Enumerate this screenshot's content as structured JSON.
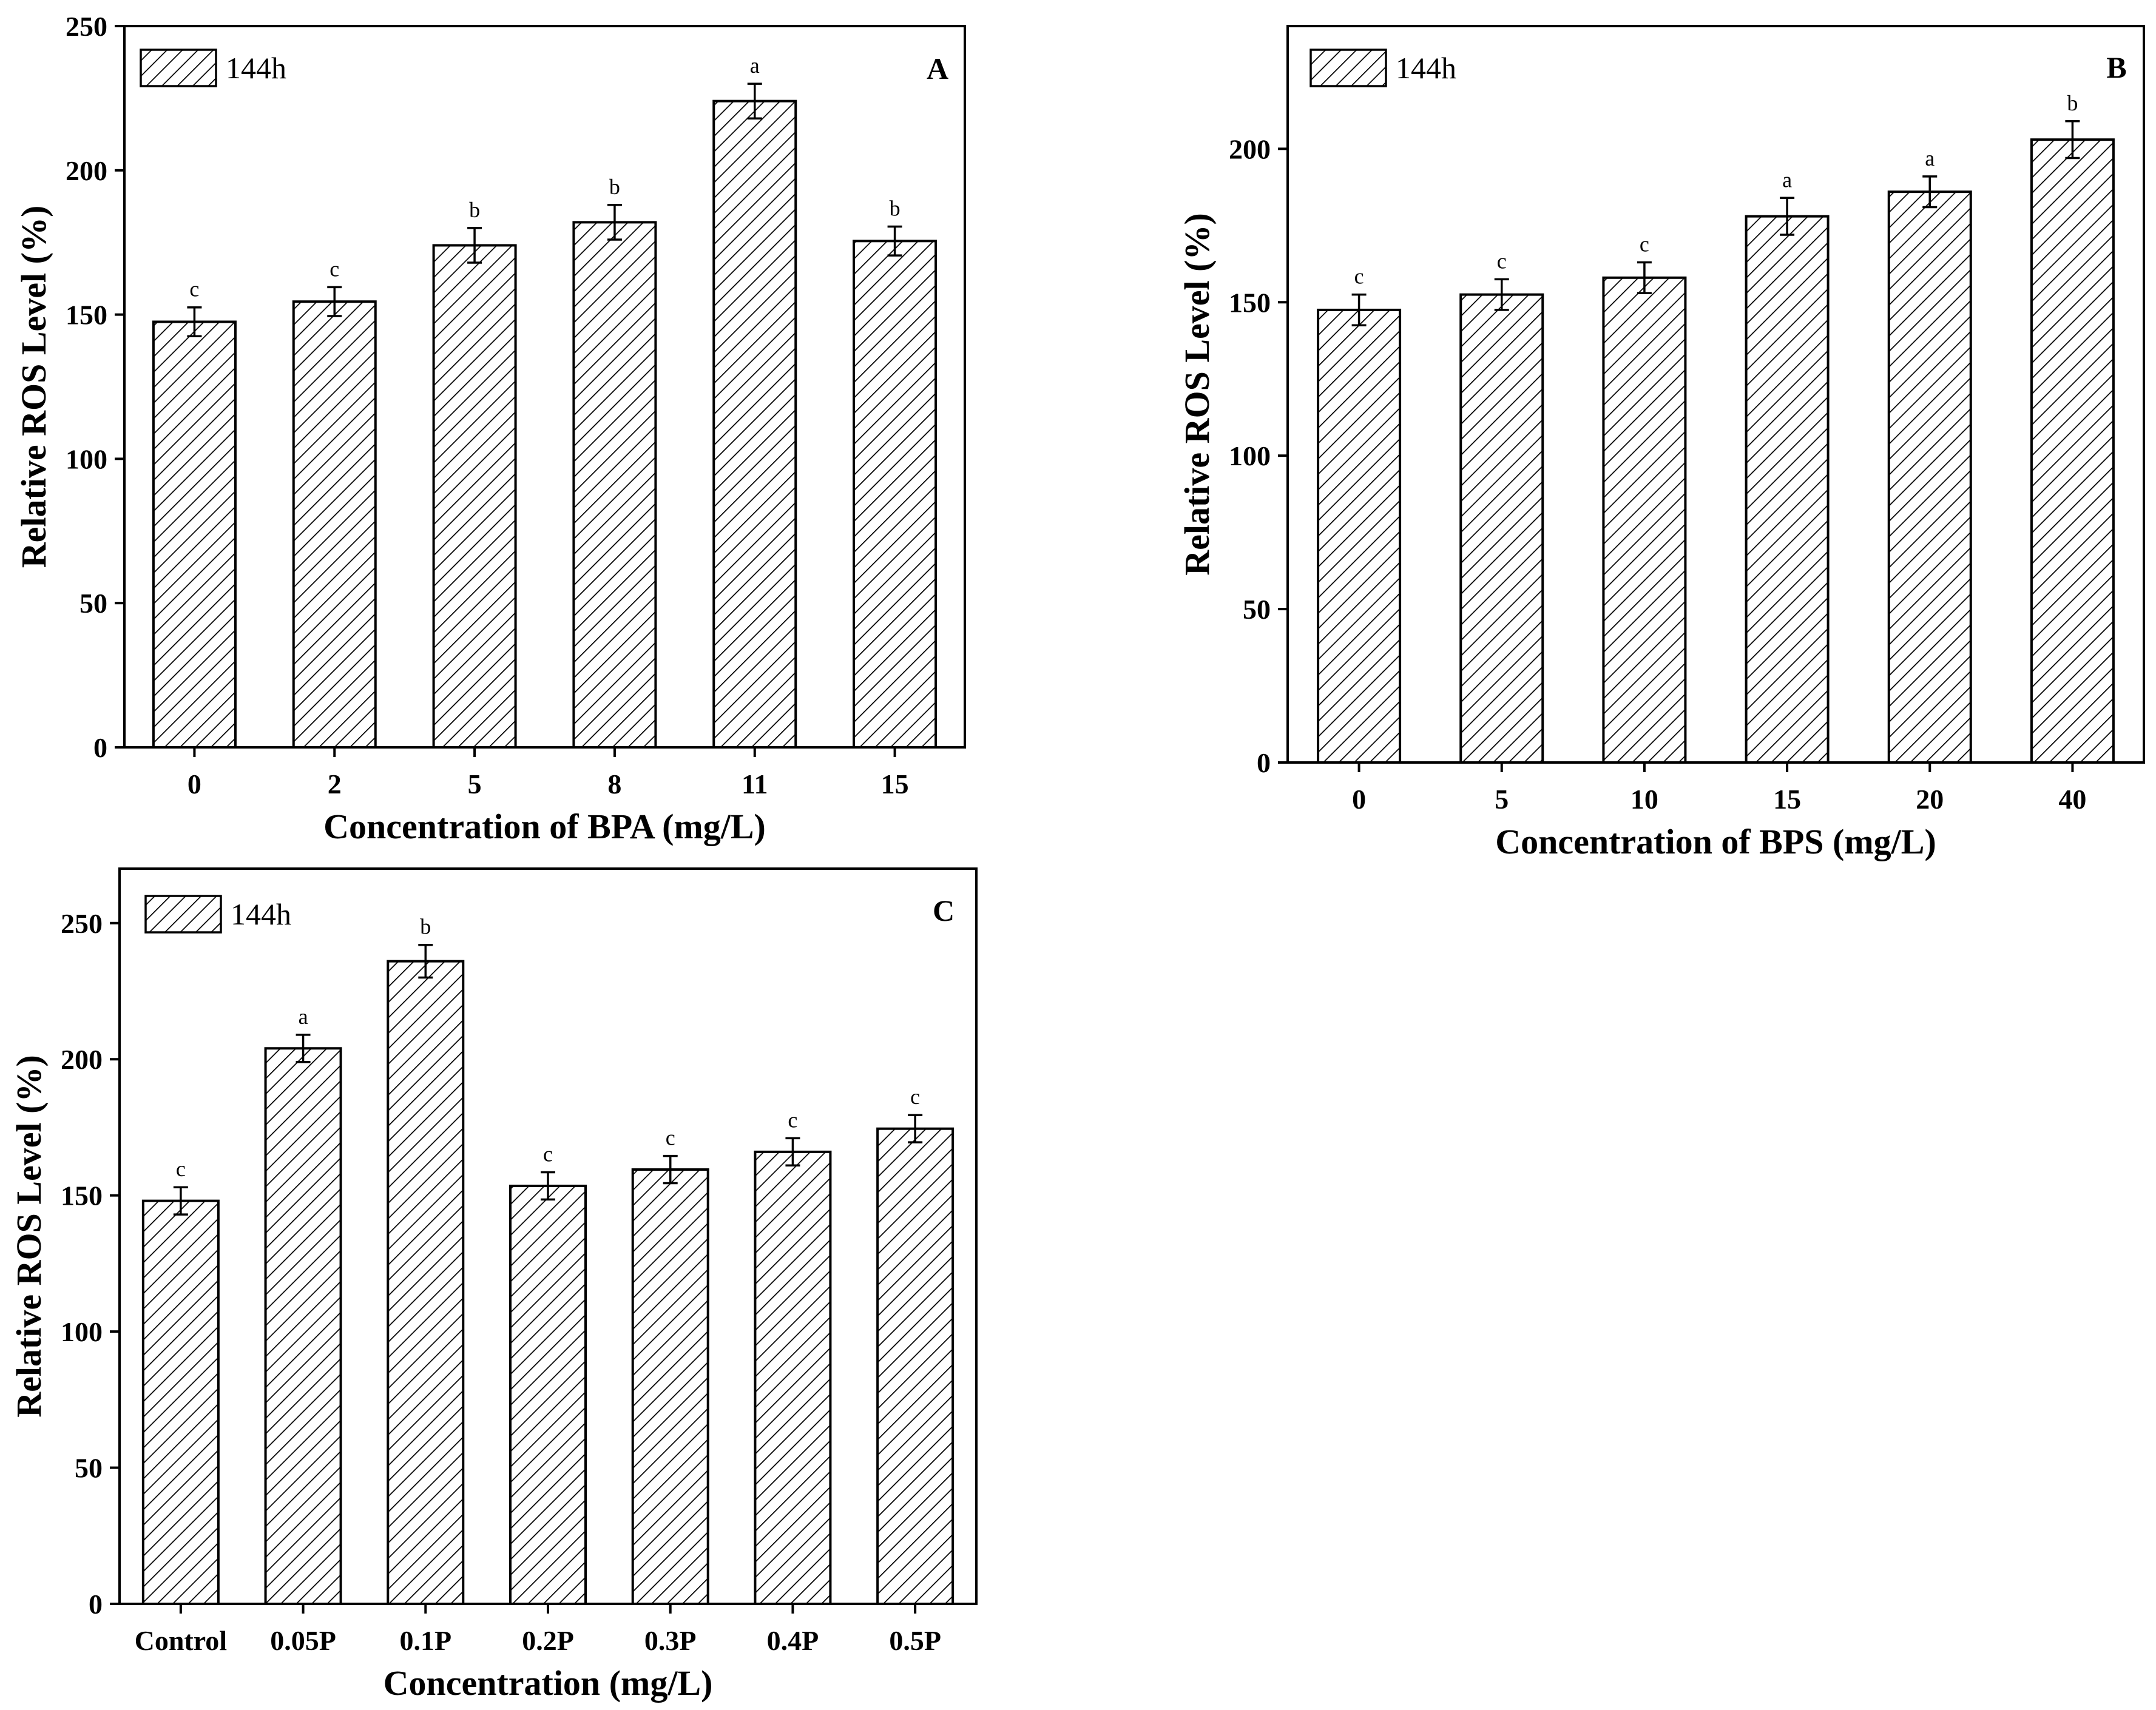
{
  "chart_data": [
    {
      "type": "bar",
      "panel_label": "A",
      "legend": [
        "144h"
      ],
      "legend_position": "top-left",
      "categories": [
        "0",
        "2",
        "5",
        "8",
        "11",
        "15"
      ],
      "series": [
        {
          "name": "144h",
          "values": [
            147.5,
            154.5,
            174,
            182,
            224,
            175.5
          ],
          "errors": [
            5,
            5,
            6,
            6,
            6,
            5
          ],
          "significance": [
            "c",
            "c",
            "b",
            "b",
            "a",
            "b"
          ]
        }
      ],
      "xlabel": "Concentration of BPA (mg/L)",
      "ylabel": "Relative ROS Level (%)",
      "ylim": [
        0,
        250
      ],
      "yticks": [
        0,
        50,
        100,
        150,
        200,
        250
      ],
      "grid": false
    },
    {
      "type": "bar",
      "panel_label": "B",
      "legend": [
        "144h"
      ],
      "legend_position": "top-left",
      "categories": [
        "0",
        "5",
        "10",
        "15",
        "20",
        "40"
      ],
      "series": [
        {
          "name": "144h",
          "values": [
            147.5,
            152.5,
            158,
            178,
            186,
            203
          ],
          "errors": [
            5,
            5,
            5,
            6,
            5,
            6
          ],
          "significance": [
            "c",
            "c",
            "c",
            "a",
            "a",
            "b"
          ]
        }
      ],
      "xlabel": "Concentration of BPS (mg/L)",
      "ylabel": "Relative ROS Level (%)",
      "ylim": [
        0,
        240
      ],
      "yticks": [
        0,
        50,
        100,
        150,
        200
      ],
      "grid": false
    },
    {
      "type": "bar",
      "panel_label": "C",
      "legend": [
        "144h"
      ],
      "legend_position": "top-left",
      "categories": [
        "Control",
        "0.05P",
        "0.1P",
        "0.2P",
        "0.3P",
        "0.4P",
        "0.5P"
      ],
      "series": [
        {
          "name": "144h",
          "values": [
            148,
            204,
            236,
            153.5,
            159.5,
            166,
            174.5
          ],
          "errors": [
            5,
            5,
            6,
            5,
            5,
            5,
            5
          ],
          "significance": [
            "c",
            "a",
            "b",
            "c",
            "c",
            "c",
            "c"
          ]
        }
      ],
      "xlabel": "Concentration (mg/L)",
      "ylabel": "Relative ROS Level (%)",
      "ylim": [
        0,
        270
      ],
      "yticks": [
        0,
        50,
        100,
        150,
        200,
        250
      ],
      "grid": false
    }
  ]
}
